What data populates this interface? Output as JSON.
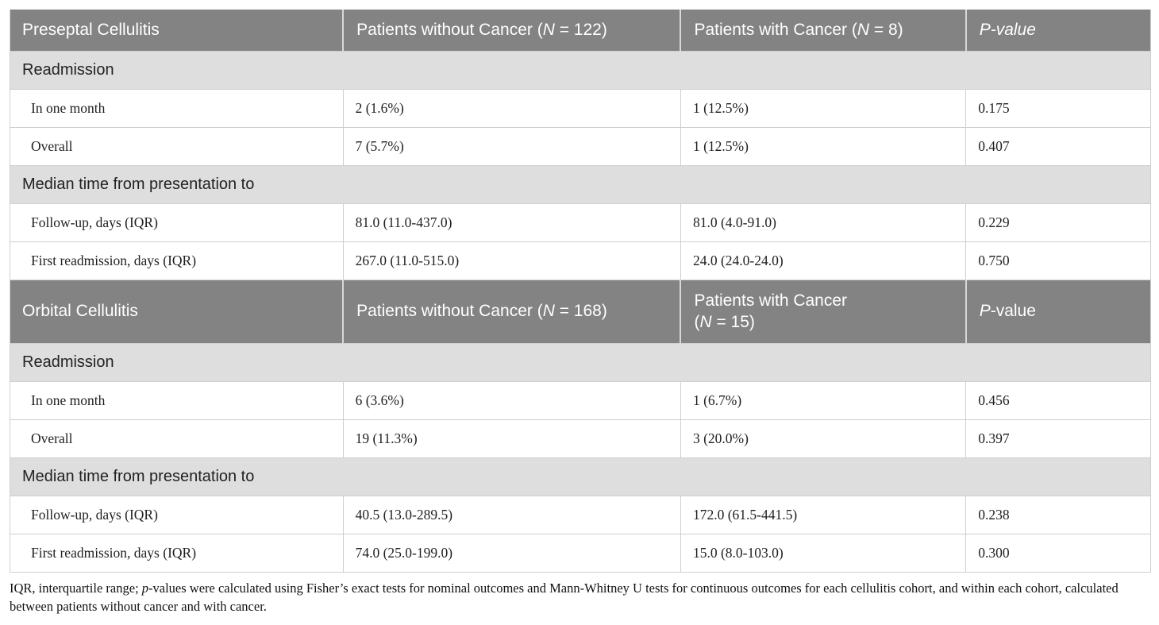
{
  "colors": {
    "header_bg": "#838383",
    "header_text": "#ffffff",
    "section_bg": "#dedede",
    "body_text": "#1f1f1f",
    "border": "#cfcfcf"
  },
  "preseptal": {
    "title": "Preseptal Cellulitis",
    "col_without_segments": [
      {
        "t": "Patients without Cancer ("
      },
      {
        "t": "N",
        "i": true
      },
      {
        "t": " = 122)"
      }
    ],
    "col_with_segments": [
      {
        "t": "Patients with Cancer ("
      },
      {
        "t": "N",
        "i": true
      },
      {
        "t": " = 8)"
      }
    ],
    "col_p_segments": [
      {
        "t": "P-value",
        "i": true
      }
    ],
    "sections": [
      {
        "label": "Readmission",
        "rows": [
          {
            "label": "In one month",
            "without": "2 (1.6%)",
            "with": "1 (12.5%)",
            "p": "0.175"
          },
          {
            "label": "Overall",
            "without": "7 (5.7%)",
            "with": "1 (12.5%)",
            "p": "0.407"
          }
        ]
      },
      {
        "label": "Median time from presentation to",
        "rows": [
          {
            "label": "Follow-up, days (IQR)",
            "without": "81.0 (11.0-437.0)",
            "with": "81.0 (4.0-91.0)",
            "p": "0.229"
          },
          {
            "label": "First readmission, days (IQR)",
            "without": "267.0 (11.0-515.0)",
            "with": "24.0 (24.0-24.0)",
            "p": "0.750"
          }
        ]
      }
    ]
  },
  "orbital": {
    "title": "Orbital Cellulitis",
    "col_without_segments": [
      {
        "t": "Patients without Cancer ("
      },
      {
        "t": "N",
        "i": true
      },
      {
        "t": " = 168)"
      }
    ],
    "col_with_segments": [
      {
        "t": "Patients with Cancer"
      },
      {
        "br": true
      },
      {
        "t": "("
      },
      {
        "t": "N",
        "i": true
      },
      {
        "t": " = 15)"
      }
    ],
    "col_p_segments": [
      {
        "t": "P",
        "i": true
      },
      {
        "t": "-value"
      }
    ],
    "sections": [
      {
        "label": "Readmission",
        "rows": [
          {
            "label": "In one month",
            "without": "6 (3.6%)",
            "with": "1 (6.7%)",
            "p": "0.456"
          },
          {
            "label": "Overall",
            "without": "19 (11.3%)",
            "with": "3 (20.0%)",
            "p": "0.397"
          }
        ]
      },
      {
        "label": "Median time from presentation to",
        "rows": [
          {
            "label": "Follow-up, days (IQR)",
            "without": "40.5 (13.0-289.5)",
            "with": "172.0 (61.5-441.5)",
            "p": "0.238"
          },
          {
            "label": "First readmission, days (IQR)",
            "without": "74.0 (25.0-199.0)",
            "with": "15.0 (8.0-103.0)",
            "p": "0.300"
          }
        ]
      }
    ]
  },
  "footnote_segments": [
    {
      "t": "IQR, interquartile range; "
    },
    {
      "t": "p",
      "i": true
    },
    {
      "t": "-values were calculated using Fisher’s exact tests for nominal outcomes and Mann-Whitney U tests for continuous outcomes for each cellulitis cohort, and within each cohort, calculated between patients without cancer and with cancer."
    }
  ]
}
